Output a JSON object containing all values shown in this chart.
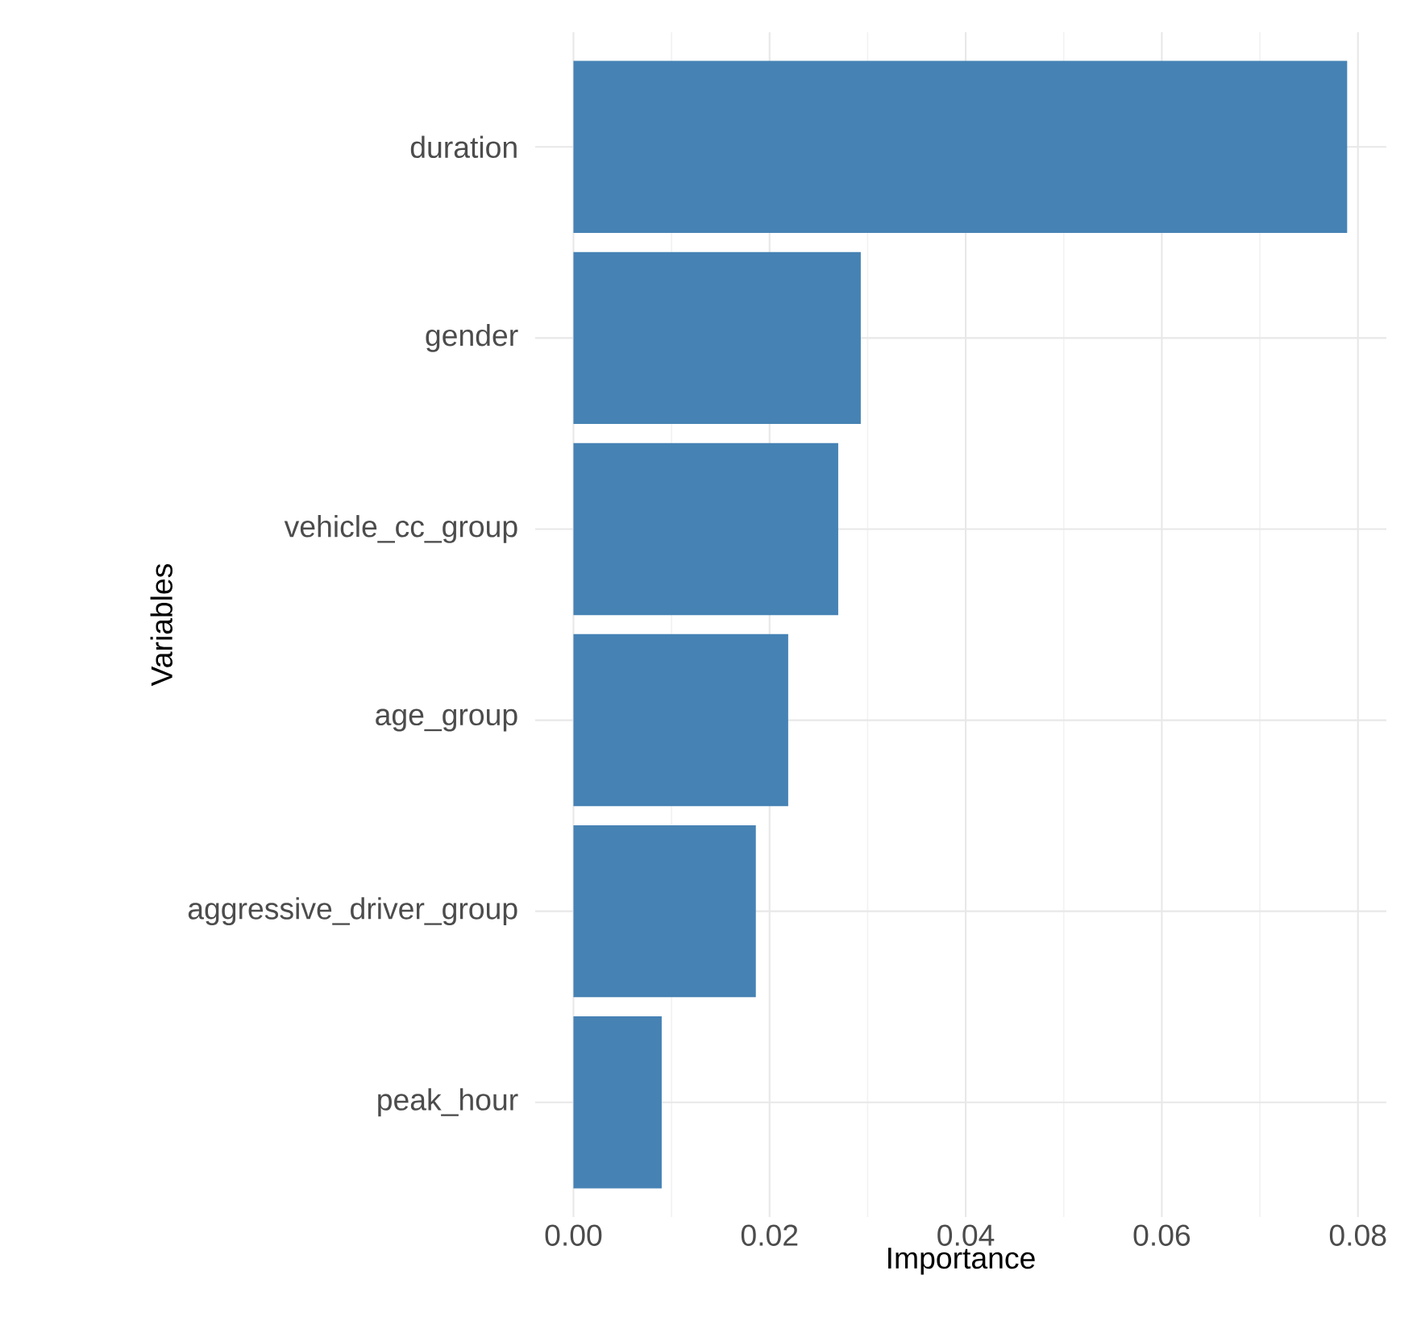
{
  "chart_data": {
    "type": "bar",
    "orientation": "horizontal",
    "xlabel": "Importance",
    "ylabel": "Variables",
    "categories": [
      "duration",
      "gender",
      "vehicle_cc_group",
      "age_group",
      "aggressive_driver_group",
      "peak_hour"
    ],
    "values": [
      0.0789,
      0.0293,
      0.027,
      0.0219,
      0.0186,
      0.009
    ],
    "color": "#4682b4",
    "xlim": [
      -0.0039,
      0.0829
    ],
    "xticks": [
      {
        "value": 0,
        "label": "0.00"
      },
      {
        "value": 0.02,
        "label": "0.02"
      },
      {
        "value": 0.04,
        "label": "0.04"
      },
      {
        "value": 0.06,
        "label": "0.06"
      },
      {
        "value": 0.08,
        "label": "0.08"
      }
    ],
    "grid": true
  }
}
